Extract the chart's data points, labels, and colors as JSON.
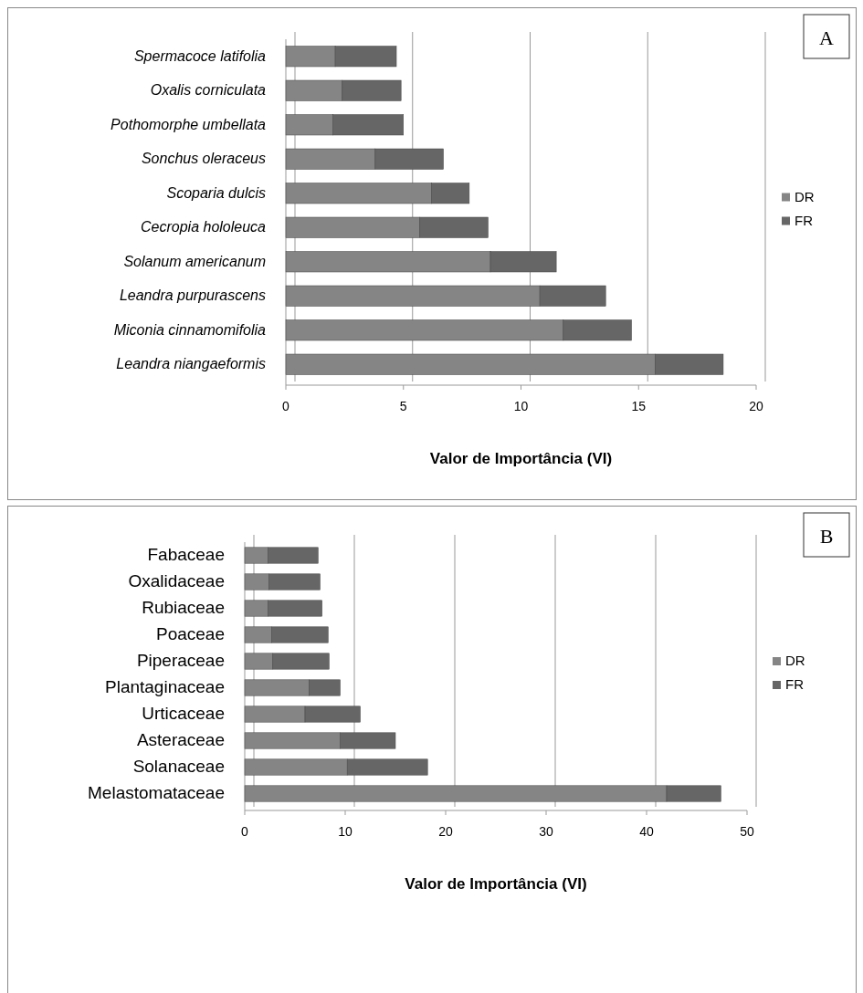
{
  "chart_data": [
    {
      "type": "bar",
      "orientation": "horizontal",
      "stacked": true,
      "categories": [
        "Spermacoce latifolia",
        "Oxalis corniculata",
        "Pothomorphe umbellata",
        "Sonchus oleraceus",
        "Scoparia dulcis",
        "Cecropia hololeuca",
        "Solanum americanum",
        "Leandra purpurascens",
        "Miconia cinnamomifolia",
        "Leandra niangaeformis"
      ],
      "series": [
        {
          "name": "DR",
          "color": "#858585",
          "values": [
            2.1,
            2.4,
            2.0,
            3.8,
            6.2,
            5.7,
            8.7,
            10.8,
            11.8,
            15.7
          ]
        },
        {
          "name": "FR",
          "color": "#666666",
          "values": [
            2.6,
            2.5,
            3.0,
            2.9,
            1.6,
            2.9,
            2.8,
            2.8,
            2.9,
            2.9
          ]
        }
      ],
      "xlim": [
        0,
        20
      ],
      "xticks": [
        0,
        5,
        10,
        15,
        20
      ],
      "xlabel": "Valor de Importância (VI)",
      "grid": "x",
      "legend": "right",
      "annotations": [
        "A"
      ]
    },
    {
      "type": "bar",
      "orientation": "horizontal",
      "stacked": true,
      "categories": [
        "Fabaceae",
        "Oxalidaceae",
        "Rubiaceae",
        "Poaceae",
        "Piperaceae",
        "Plantaginaceae",
        "Urticaceae",
        "Asteraceae",
        "Solanaceae",
        "Melastomataceae"
      ],
      "series": [
        {
          "name": "DR",
          "color": "#858585",
          "values": [
            2.3,
            2.4,
            2.3,
            2.7,
            2.8,
            6.4,
            6.0,
            9.5,
            10.2,
            42.0
          ]
        },
        {
          "name": "FR",
          "color": "#666666",
          "values": [
            5.0,
            5.1,
            5.4,
            5.6,
            5.6,
            3.1,
            5.5,
            5.5,
            8.0,
            5.4
          ]
        }
      ],
      "xlim": [
        0,
        50
      ],
      "xticks": [
        0,
        10,
        20,
        30,
        40,
        50
      ],
      "xlabel": "Valor de Importância (VI)",
      "grid": "x",
      "legend": "right",
      "annotations": [
        "B"
      ]
    }
  ]
}
